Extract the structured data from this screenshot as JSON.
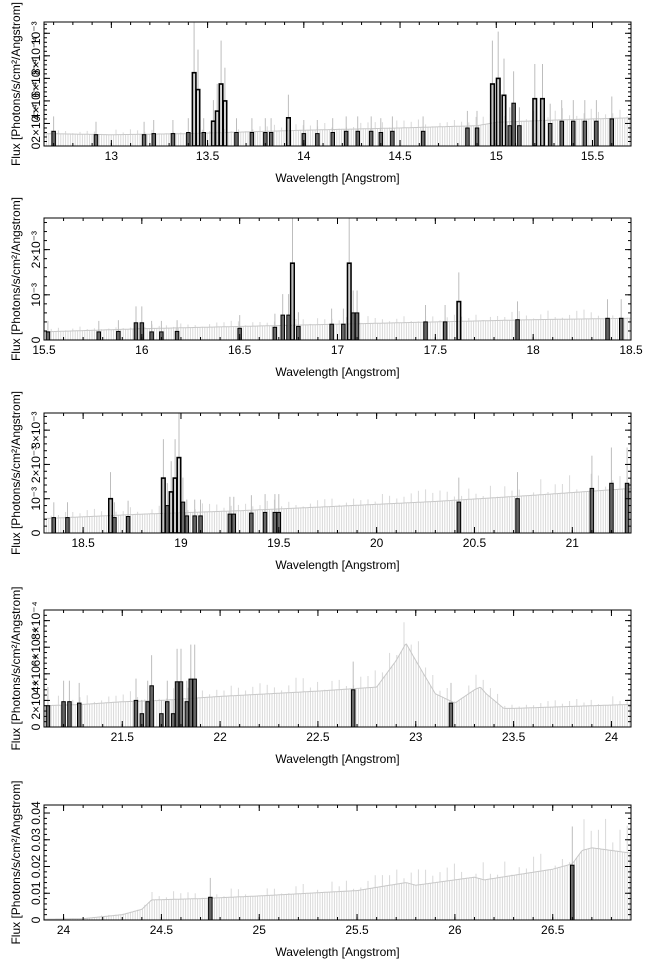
{
  "figure": {
    "background": "#ffffff",
    "model_color": "#d9d9d9",
    "data_color": "#000000",
    "errorbar_color": "#bdbdbd"
  },
  "chart_data": [
    {
      "type": "bar",
      "xlabel": "Wavelength [Angstrom]",
      "ylabel": "Flux [Photons/s/cm²/Angstrom]",
      "xlim": [
        12.65,
        15.7
      ],
      "ylim": [
        0,
        0.0011
      ],
      "grid": false,
      "xticks": [
        {
          "v": 13,
          "t": "13"
        },
        {
          "v": 13.5,
          "t": "13.5"
        },
        {
          "v": 14,
          "t": "14"
        },
        {
          "v": 14.5,
          "t": "14.5"
        },
        {
          "v": 15,
          "t": "15"
        },
        {
          "v": 15.5,
          "t": "15.5"
        }
      ],
      "yticks": [
        {
          "v": 0,
          "t": "0"
        },
        {
          "v": 0.0002,
          "t": "2×10⁻⁴"
        },
        {
          "v": 0.0004,
          "t": "4×10⁻⁴"
        },
        {
          "v": 0.0006,
          "t": "6×10⁻⁴"
        },
        {
          "v": 0.0008,
          "t": "8×10⁻⁴"
        },
        {
          "v": 0.001,
          "t": "10⁻³"
        }
      ],
      "model": {
        "x": [
          12.65,
          13.0,
          13.4,
          13.6,
          14.0,
          14.5,
          14.9,
          15.0,
          15.3,
          15.5,
          15.7
        ],
        "y": [
          0.00011,
          0.0001,
          0.00011,
          0.00012,
          0.00014,
          0.00016,
          0.00018,
          0.00021,
          0.00023,
          0.00024,
          0.00025
        ]
      },
      "data": [
        {
          "x": 12.7,
          "y": 0.00013
        },
        {
          "x": 12.92,
          "y": 0.0001
        },
        {
          "x": 13.17,
          "y": 0.0001
        },
        {
          "x": 13.22,
          "y": 0.00011
        },
        {
          "x": 13.32,
          "y": 0.00011
        },
        {
          "x": 13.4,
          "y": 0.00012
        },
        {
          "x": 13.43,
          "y": 0.00065
        },
        {
          "x": 13.45,
          "y": 0.0005
        },
        {
          "x": 13.48,
          "y": 0.00012
        },
        {
          "x": 13.53,
          "y": 0.00022
        },
        {
          "x": 13.55,
          "y": 0.00031
        },
        {
          "x": 13.57,
          "y": 0.00055
        },
        {
          "x": 13.59,
          "y": 0.0004
        },
        {
          "x": 13.65,
          "y": 0.00012
        },
        {
          "x": 13.73,
          "y": 0.00012
        },
        {
          "x": 13.8,
          "y": 0.00012
        },
        {
          "x": 13.83,
          "y": 0.00012
        },
        {
          "x": 13.92,
          "y": 0.00025
        },
        {
          "x": 14.0,
          "y": 0.00011
        },
        {
          "x": 14.07,
          "y": 0.00011
        },
        {
          "x": 14.15,
          "y": 0.00012
        },
        {
          "x": 14.22,
          "y": 0.00013
        },
        {
          "x": 14.28,
          "y": 0.00013
        },
        {
          "x": 14.35,
          "y": 0.00013
        },
        {
          "x": 14.4,
          "y": 0.00012
        },
        {
          "x": 14.46,
          "y": 0.00013
        },
        {
          "x": 14.62,
          "y": 0.00013
        },
        {
          "x": 14.85,
          "y": 0.00016
        },
        {
          "x": 14.9,
          "y": 0.00016
        },
        {
          "x": 14.98,
          "y": 0.00055
        },
        {
          "x": 15.01,
          "y": 0.0006
        },
        {
          "x": 15.04,
          "y": 0.00045
        },
        {
          "x": 15.07,
          "y": 0.00018
        },
        {
          "x": 15.09,
          "y": 0.00038
        },
        {
          "x": 15.12,
          "y": 0.00018
        },
        {
          "x": 15.2,
          "y": 0.00042
        },
        {
          "x": 15.24,
          "y": 0.00042
        },
        {
          "x": 15.28,
          "y": 0.0002
        },
        {
          "x": 15.34,
          "y": 0.00022
        },
        {
          "x": 15.4,
          "y": 0.00022
        },
        {
          "x": 15.46,
          "y": 0.00022
        },
        {
          "x": 15.52,
          "y": 0.00022
        },
        {
          "x": 15.6,
          "y": 0.00024
        }
      ]
    },
    {
      "type": "bar",
      "xlabel": "Wavelength [Angstrom]",
      "ylabel": "Flux [Photons/s/cm²/Angstrom]",
      "xlim": [
        15.5,
        18.5
      ],
      "ylim": [
        0,
        0.0027
      ],
      "grid": false,
      "xticks": [
        {
          "v": 15.5,
          "t": "15.5"
        },
        {
          "v": 16,
          "t": "16"
        },
        {
          "v": 16.5,
          "t": "16.5"
        },
        {
          "v": 17,
          "t": "17"
        },
        {
          "v": 17.5,
          "t": "17.5"
        },
        {
          "v": 18,
          "t": "18"
        },
        {
          "v": 18.5,
          "t": "18.5"
        }
      ],
      "yticks": [
        {
          "v": 0,
          "t": "0"
        },
        {
          "v": 0.001,
          "t": "10⁻³"
        },
        {
          "v": 0.002,
          "t": "2×10⁻³"
        }
      ],
      "model": {
        "x": [
          15.5,
          16.0,
          16.5,
          17.0,
          17.5,
          18.0,
          18.5
        ],
        "y": [
          0.00018,
          0.00025,
          0.0003,
          0.00035,
          0.0004,
          0.00045,
          0.00048
        ]
      },
      "data": [
        {
          "x": 15.52,
          "y": 0.00018
        },
        {
          "x": 15.78,
          "y": 0.00018
        },
        {
          "x": 15.88,
          "y": 0.00019
        },
        {
          "x": 15.97,
          "y": 0.00038
        },
        {
          "x": 16.0,
          "y": 0.00038
        },
        {
          "x": 16.05,
          "y": 0.00018
        },
        {
          "x": 16.1,
          "y": 0.00018
        },
        {
          "x": 16.18,
          "y": 0.00019
        },
        {
          "x": 16.5,
          "y": 0.00026
        },
        {
          "x": 16.68,
          "y": 0.00028
        },
        {
          "x": 16.72,
          "y": 0.00055
        },
        {
          "x": 16.75,
          "y": 0.00055
        },
        {
          "x": 16.77,
          "y": 0.0017
        },
        {
          "x": 16.8,
          "y": 0.0003
        },
        {
          "x": 16.97,
          "y": 0.00035
        },
        {
          "x": 17.03,
          "y": 0.00035
        },
        {
          "x": 17.06,
          "y": 0.0017
        },
        {
          "x": 17.08,
          "y": 0.0006
        },
        {
          "x": 17.1,
          "y": 0.0006
        },
        {
          "x": 17.45,
          "y": 0.0004
        },
        {
          "x": 17.55,
          "y": 0.0004
        },
        {
          "x": 17.62,
          "y": 0.00085
        },
        {
          "x": 17.92,
          "y": 0.00045
        },
        {
          "x": 18.38,
          "y": 0.00048
        },
        {
          "x": 18.45,
          "y": 0.00048
        }
      ]
    },
    {
      "type": "bar",
      "xlabel": "Wavelength [Angstrom]",
      "ylabel": "Flux [Photons/s/cm²/Angstrom]",
      "xlim": [
        18.3,
        21.3
      ],
      "ylim": [
        0,
        0.0035
      ],
      "grid": false,
      "xticks": [
        {
          "v": 18.5,
          "t": "18.5"
        },
        {
          "v": 19,
          "t": "19"
        },
        {
          "v": 19.5,
          "t": "19.5"
        },
        {
          "v": 20,
          "t": "20"
        },
        {
          "v": 20.5,
          "t": "20.5"
        },
        {
          "v": 21,
          "t": "21"
        }
      ],
      "yticks": [
        {
          "v": 0,
          "t": "0"
        },
        {
          "v": 0.001,
          "t": "10⁻³"
        },
        {
          "v": 0.002,
          "t": "2×10⁻³"
        },
        {
          "v": 0.003,
          "t": "3×10⁻³"
        }
      ],
      "model": {
        "x": [
          18.3,
          18.8,
          19.3,
          19.8,
          20.3,
          20.8,
          21.3
        ],
        "y": [
          0.00042,
          0.00055,
          0.00065,
          0.00078,
          0.00092,
          0.0011,
          0.0013
        ]
      },
      "data": [
        {
          "x": 18.35,
          "y": 0.00045
        },
        {
          "x": 18.42,
          "y": 0.00045
        },
        {
          "x": 18.64,
          "y": 0.001
        },
        {
          "x": 18.66,
          "y": 0.00045
        },
        {
          "x": 18.73,
          "y": 0.00048
        },
        {
          "x": 18.91,
          "y": 0.0016
        },
        {
          "x": 18.93,
          "y": 0.0008
        },
        {
          "x": 18.95,
          "y": 0.0012
        },
        {
          "x": 18.97,
          "y": 0.0016
        },
        {
          "x": 18.99,
          "y": 0.0022
        },
        {
          "x": 19.01,
          "y": 0.0009
        },
        {
          "x": 19.03,
          "y": 0.0005
        },
        {
          "x": 19.07,
          "y": 0.0005
        },
        {
          "x": 19.1,
          "y": 0.0005
        },
        {
          "x": 19.25,
          "y": 0.00055
        },
        {
          "x": 19.27,
          "y": 0.00055
        },
        {
          "x": 19.36,
          "y": 0.00058
        },
        {
          "x": 19.43,
          "y": 0.0006
        },
        {
          "x": 19.48,
          "y": 0.0006
        },
        {
          "x": 19.5,
          "y": 0.0006
        },
        {
          "x": 20.42,
          "y": 0.0009
        },
        {
          "x": 20.72,
          "y": 0.001
        },
        {
          "x": 21.1,
          "y": 0.0013
        },
        {
          "x": 21.2,
          "y": 0.00145
        },
        {
          "x": 21.28,
          "y": 0.00145
        }
      ]
    },
    {
      "type": "bar",
      "xlabel": "Wavelength [Angstrom]",
      "ylabel": "Flux [Photons/s/cm²/Angstrom]",
      "xlim": [
        21.1,
        24.1
      ],
      "ylim": [
        0,
        0.00088
      ],
      "grid": false,
      "xticks": [
        {
          "v": 21.5,
          "t": "21.5"
        },
        {
          "v": 22,
          "t": "22"
        },
        {
          "v": 22.5,
          "t": "22.5"
        },
        {
          "v": 23,
          "t": "23"
        },
        {
          "v": 23.5,
          "t": "23.5"
        },
        {
          "v": 24,
          "t": "24"
        }
      ],
      "yticks": [
        {
          "v": 0,
          "t": "0"
        },
        {
          "v": 0.0002,
          "t": "2×10⁻⁴"
        },
        {
          "v": 0.0004,
          "t": "4×10⁻⁴"
        },
        {
          "v": 0.0006,
          "t": "6×10⁻⁴"
        },
        {
          "v": 0.0008,
          "t": "8×10⁻⁴"
        }
      ],
      "model": {
        "x": [
          21.1,
          21.3,
          21.5,
          21.7,
          22.0,
          22.5,
          22.8,
          22.9,
          22.95,
          23.0,
          23.1,
          23.2,
          23.3,
          23.33,
          23.36,
          23.45,
          23.5,
          24.1
        ],
        "y": [
          0.00016,
          0.00017,
          0.00019,
          0.0002,
          0.00023,
          0.00027,
          0.0003,
          0.0005,
          0.00063,
          0.0005,
          0.00025,
          0.00018,
          0.00028,
          0.0003,
          0.00025,
          0.00014,
          0.00014,
          0.00017
        ]
      },
      "data": [
        {
          "x": 21.12,
          "y": 0.00016
        },
        {
          "x": 21.2,
          "y": 0.00019
        },
        {
          "x": 21.23,
          "y": 0.00019
        },
        {
          "x": 21.28,
          "y": 0.00018
        },
        {
          "x": 21.57,
          "y": 0.0002
        },
        {
          "x": 21.6,
          "y": 0.0001
        },
        {
          "x": 21.63,
          "y": 0.00019
        },
        {
          "x": 21.65,
          "y": 0.00031
        },
        {
          "x": 21.7,
          "y": 0.0001
        },
        {
          "x": 21.73,
          "y": 0.00019
        },
        {
          "x": 21.76,
          "y": 0.0001
        },
        {
          "x": 21.78,
          "y": 0.00034
        },
        {
          "x": 21.8,
          "y": 0.00034
        },
        {
          "x": 21.83,
          "y": 0.00019
        },
        {
          "x": 21.85,
          "y": 0.00036
        },
        {
          "x": 21.87,
          "y": 0.00036
        },
        {
          "x": 22.68,
          "y": 0.00028
        },
        {
          "x": 23.18,
          "y": 0.00018
        }
      ]
    },
    {
      "type": "bar",
      "xlabel": "Wavelength [Angstrom]",
      "ylabel": "Flux [Photons/s/cm²/Angstrom]",
      "xlim": [
        23.9,
        26.9
      ],
      "ylim": [
        0,
        0.043
      ],
      "grid": false,
      "xticks": [
        {
          "v": 24,
          "t": "24"
        },
        {
          "v": 24.5,
          "t": "24.5"
        },
        {
          "v": 25,
          "t": "25"
        },
        {
          "v": 25.5,
          "t": "25.5"
        },
        {
          "v": 26,
          "t": "26"
        },
        {
          "v": 26.5,
          "t": "26.5"
        }
      ],
      "yticks": [
        {
          "v": 0,
          "t": "0"
        },
        {
          "v": 0.01,
          "t": "0.01"
        },
        {
          "v": 0.02,
          "t": "0.02"
        },
        {
          "v": 0.03,
          "t": "0.03"
        },
        {
          "v": 0.04,
          "t": "0.04"
        }
      ],
      "model": {
        "x": [
          23.9,
          24.1,
          24.3,
          24.4,
          24.45,
          24.7,
          25.0,
          25.5,
          25.75,
          25.8,
          26.0,
          26.1,
          26.15,
          26.5,
          26.6,
          26.65,
          26.7,
          26.9
        ],
        "y": [
          0.0003,
          0.0005,
          0.002,
          0.004,
          0.0075,
          0.008,
          0.009,
          0.011,
          0.014,
          0.013,
          0.015,
          0.016,
          0.015,
          0.019,
          0.021,
          0.026,
          0.027,
          0.025
        ]
      },
      "data": [
        {
          "x": 24.75,
          "y": 0.0085
        },
        {
          "x": 26.6,
          "y": 0.0205
        }
      ]
    }
  ]
}
